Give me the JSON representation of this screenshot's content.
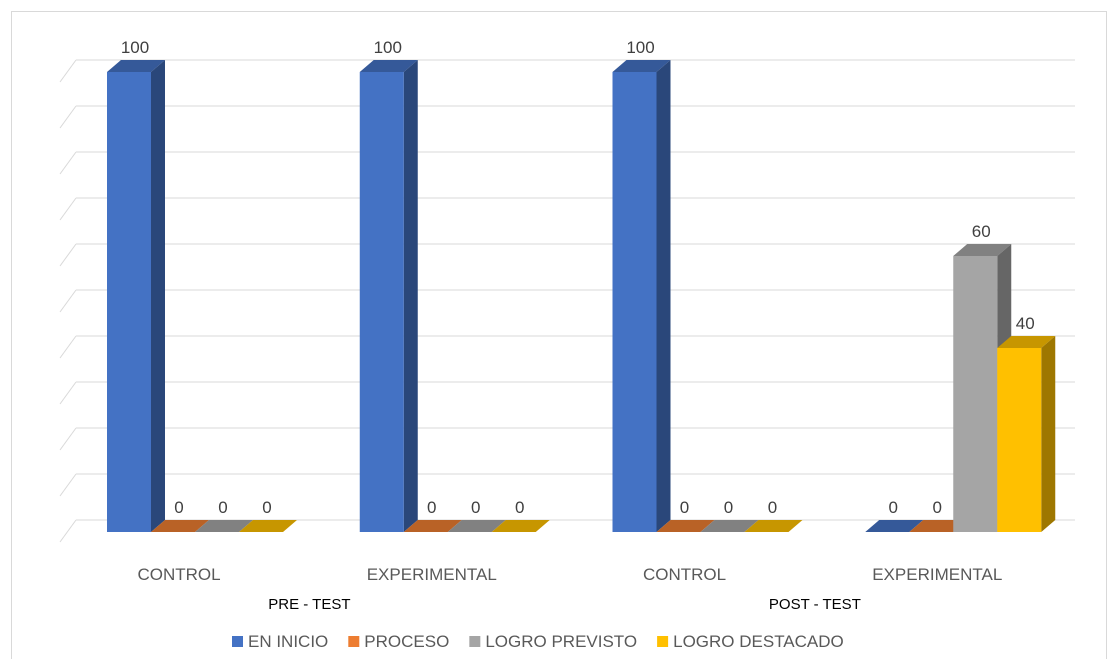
{
  "chart_data": {
    "type": "bar",
    "categories": [
      "CONTROL",
      "EXPERIMENTAL",
      "CONTROL",
      "EXPERIMENTAL"
    ],
    "groups": [
      {
        "label": "PRE - TEST",
        "categories": [
          0,
          1
        ]
      },
      {
        "label": "POST - TEST",
        "categories": [
          2,
          3
        ]
      }
    ],
    "series": [
      {
        "name": "EN INICIO",
        "color": "#4472C4",
        "values": [
          100,
          100,
          100,
          0
        ]
      },
      {
        "name": "PROCESO",
        "color": "#ED7D31",
        "values": [
          0,
          0,
          0,
          0
        ]
      },
      {
        "name": "LOGRO PREVISTO",
        "color": "#A5A5A5",
        "values": [
          0,
          0,
          0,
          60
        ]
      },
      {
        "name": "LOGRO DESTACADO",
        "color": "#FFC000",
        "values": [
          0,
          0,
          0,
          40
        ]
      }
    ],
    "ylim": [
      0,
      100
    ],
    "three_d": true,
    "grid": true,
    "data_labels": true,
    "legend": "bottom"
  }
}
